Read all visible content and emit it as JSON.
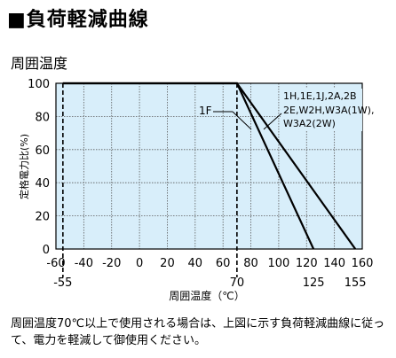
{
  "header": {
    "title": "■負荷軽減曲線",
    "subtitle": "周囲温度"
  },
  "note": "周囲温度70℃以上で使用される場合は、上図に示す負荷軽減曲線に従って、電力を軽減して御使用ください。",
  "chart_data": {
    "type": "line",
    "xlabel": "周囲温度（℃）",
    "ylabel": "定格電力比(%)",
    "xlim": [
      -60,
      160
    ],
    "ylim": [
      0,
      100
    ],
    "x_ticks": [
      -60,
      -40,
      -20,
      0,
      20,
      40,
      60,
      80,
      100,
      120,
      140,
      160
    ],
    "x_ticks_lower": [
      -55,
      70,
      125,
      155
    ],
    "y_ticks": [
      0,
      20,
      40,
      60,
      80,
      100
    ],
    "grid": true,
    "plot_background": "#d8eefa",
    "grid_color": "#5a5a5a",
    "reference_lines_x": [
      -55,
      70
    ],
    "series": [
      {
        "name": "1F",
        "points": [
          [
            -55,
            100
          ],
          [
            70,
            100
          ],
          [
            125,
            0
          ]
        ]
      },
      {
        "name": "1H,1E,1J,2A,2B",
        "name_line2": "2E,W2H,W3A(1W),",
        "name_line3": "W3A2(2W)",
        "points": [
          [
            -55,
            100
          ],
          [
            70,
            100
          ],
          [
            155,
            0
          ]
        ]
      }
    ]
  }
}
